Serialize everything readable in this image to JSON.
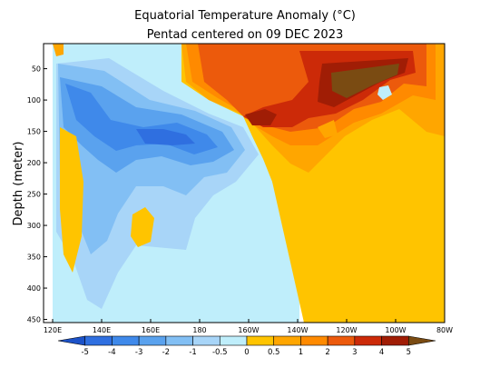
{
  "chart_data": {
    "type": "heatmap",
    "title": "Equatorial Temperature Anomaly (°C)",
    "subtitle": "Pentad centered on 09 DEC 2023",
    "ylabel": "Depth (meter)",
    "xlabel": "",
    "x_ticks": [
      "120E",
      "140E",
      "160E",
      "180",
      "160W",
      "140W",
      "120W",
      "100W",
      "80W"
    ],
    "x_range_deg_east": [
      120,
      280
    ],
    "y_ticks": [
      50,
      100,
      150,
      200,
      250,
      300,
      350,
      400,
      450
    ],
    "y_range_m": [
      10,
      455
    ],
    "y_inverted": true,
    "colorbar": {
      "levels": [
        "-5",
        "-4",
        "-3",
        "-2",
        "-1",
        "-0.5",
        "0",
        "0.5",
        "1",
        "2",
        "3",
        "4",
        "5"
      ],
      "colors": [
        "#1c52c8",
        "#2f6fe0",
        "#3f89ea",
        "#5aa2ee",
        "#82bff4",
        "#a8d5f8",
        "#bfeefb",
        "#ffc400",
        "#ffa600",
        "#ff8a00",
        "#ec5a0c",
        "#cc2a08",
        "#a01d05",
        "#7a4b12"
      ]
    },
    "regions_levels": [
      {
        "region": "west surface (120E-135E, 10-60m)",
        "anomaly": -0.5
      },
      {
        "region": "western subsurface core (135E-175E, 90-200m)",
        "anomaly": -2
      },
      {
        "region": "west deep (130E-200E, 200-455m)",
        "anomaly": -0.5
      },
      {
        "region": "central-east thermocline (150W-100W, 20-100m)",
        "anomaly": 5
      },
      {
        "region": "central-east upper (180-80W, 10-140m)",
        "anomaly": 3
      },
      {
        "region": "east subsurface (160W-80W, 140-455m)",
        "anomaly": 0.5
      }
    ]
  }
}
